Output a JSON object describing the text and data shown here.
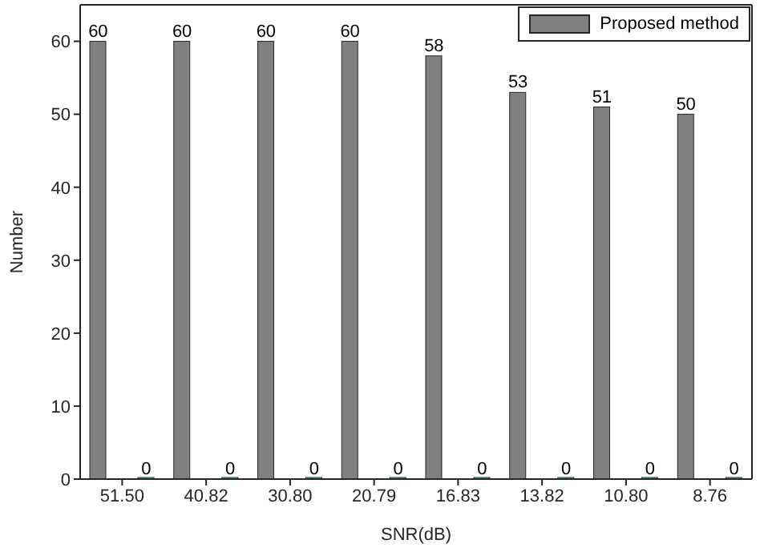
{
  "chart_data": {
    "type": "bar",
    "xlabel": "SNR(dB)",
    "ylabel": "Number",
    "categories": [
      "51.50",
      "40.82",
      "30.80",
      "20.79",
      "16.83",
      "13.82",
      "10.80",
      "8.76"
    ],
    "series": [
      {
        "name": "Proposed method",
        "color": "#808080",
        "values": [
          60,
          60,
          60,
          60,
          58,
          53,
          51,
          50
        ]
      },
      {
        "color": "#40e0e0",
        "values": [
          0,
          0,
          0,
          0,
          0,
          0,
          0,
          0
        ]
      }
    ],
    "ylim": [
      0,
      65
    ],
    "yticks": [
      0,
      10,
      20,
      30,
      40,
      50,
      60
    ],
    "data_labels": true,
    "legend": "top right",
    "grid": false
  }
}
